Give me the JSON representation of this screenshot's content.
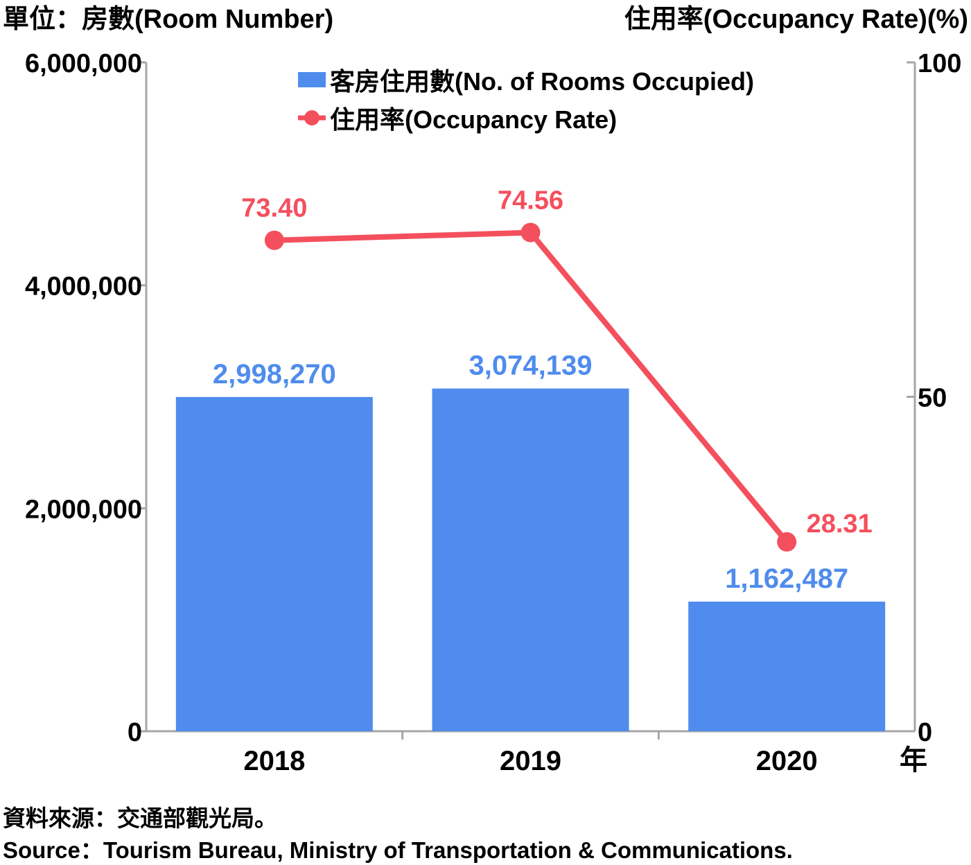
{
  "chart_data": {
    "type": "bar+line",
    "categories": [
      "2018",
      "2019",
      "2020"
    ],
    "series": [
      {
        "name": "客房住用數(No. of Rooms Occupied)",
        "type": "bar",
        "axis": "left",
        "values": [
          2998270,
          3074139,
          1162487
        ],
        "labels": [
          "2,998,270",
          "3,074,139",
          "1,162,487"
        ],
        "color": "#4f8ced"
      },
      {
        "name": "住用率(Occupancy Rate)",
        "type": "line",
        "axis": "right",
        "values": [
          73.4,
          74.56,
          28.31
        ],
        "labels": [
          "73.40",
          "74.56",
          "28.31"
        ],
        "color": "#f44f5d"
      }
    ],
    "y_left": {
      "title": "單位：房數(Room Number)",
      "ylim": [
        0,
        6000000
      ],
      "ticks": [
        0,
        2000000,
        4000000,
        6000000
      ],
      "tick_labels": [
        "0",
        "2,000,000",
        "4,000,000",
        "6,000,000"
      ]
    },
    "y_right": {
      "title": "住用率(Occupancy Rate)(%)",
      "ylim": [
        0,
        100
      ],
      "ticks": [
        0,
        50,
        100
      ],
      "tick_labels": [
        "0",
        "50",
        "100"
      ]
    },
    "x_unit": "年",
    "legend_position": "top-center",
    "grid": false
  },
  "source": {
    "zh": "資料來源：交通部觀光局。",
    "en": "Source：Tourism Bureau, Ministry of Transportation & Communications."
  }
}
